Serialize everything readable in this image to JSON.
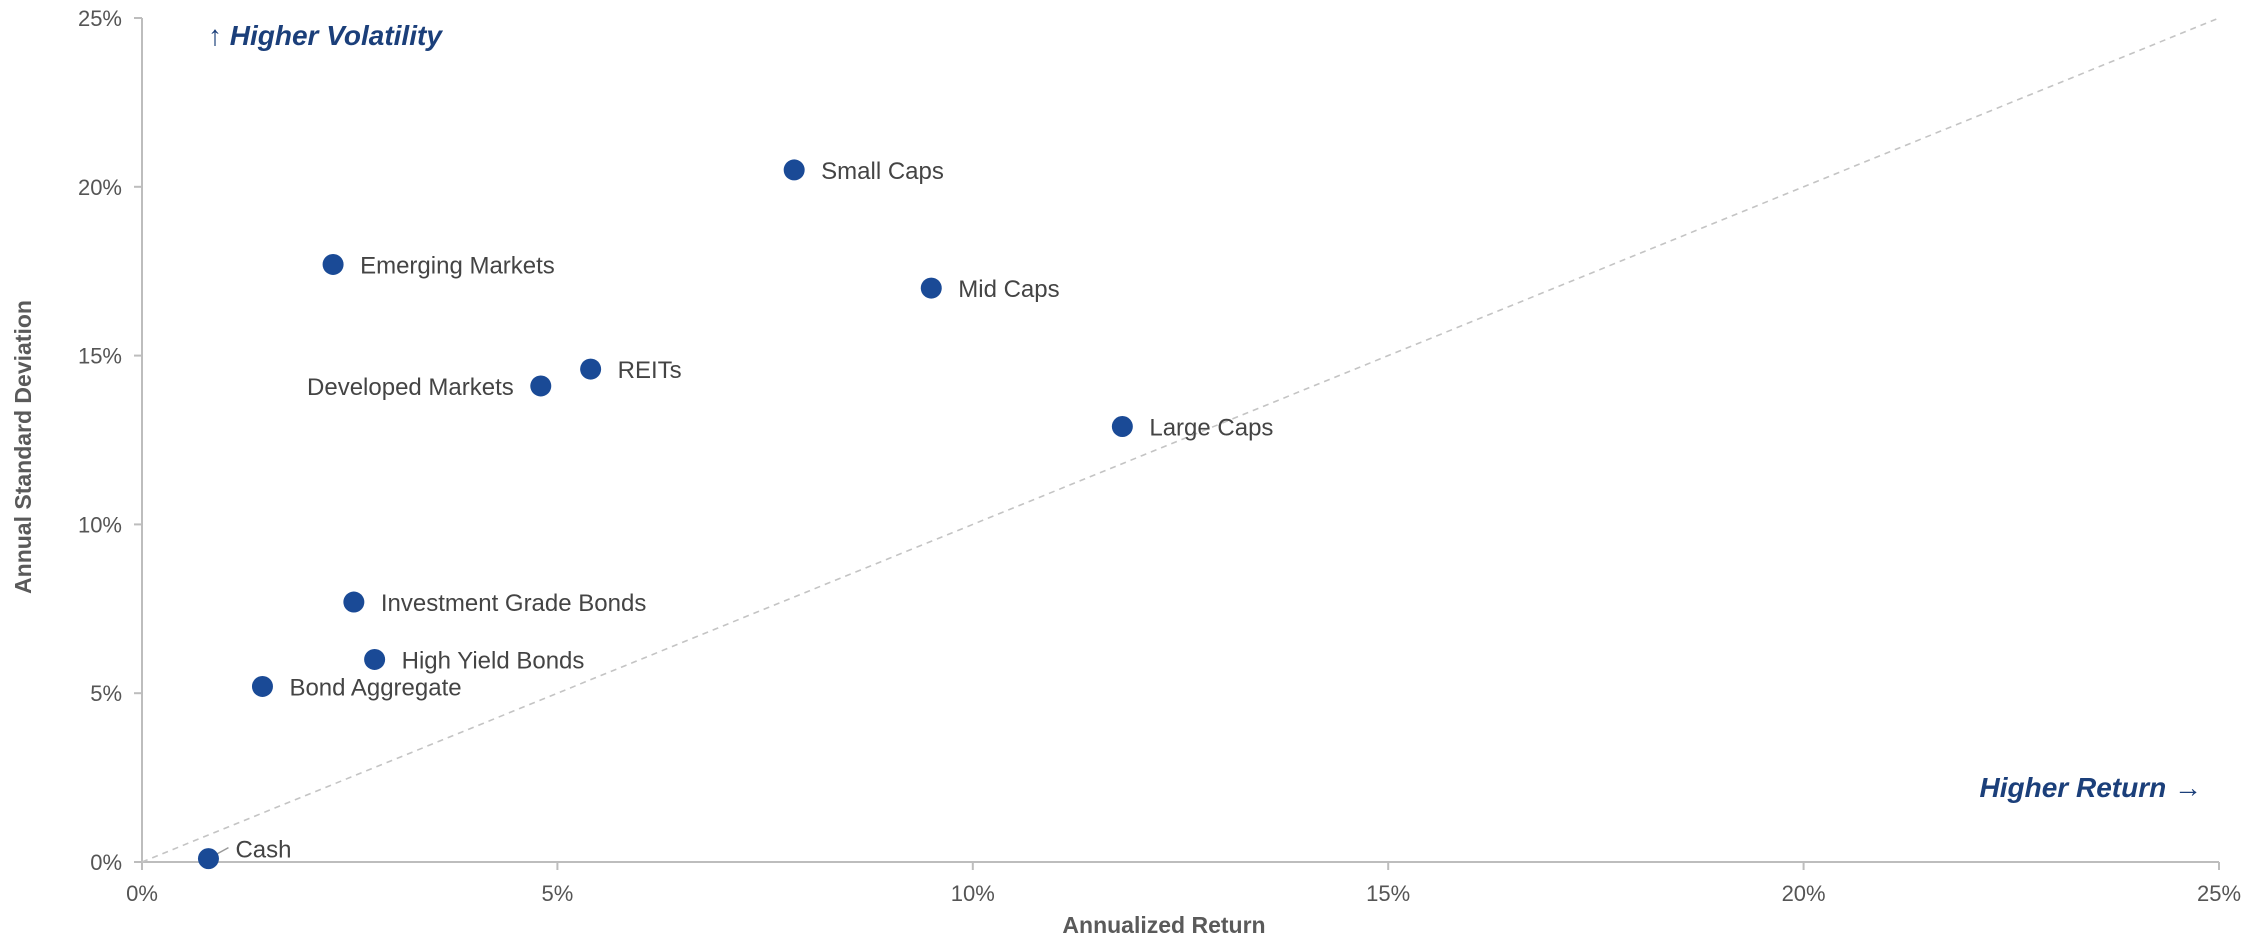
{
  "chart_data": {
    "type": "scatter",
    "xlabel": "Annualized Return",
    "ylabel": "Annual Standard Deviation",
    "xlim": [
      0,
      25
    ],
    "ylim": [
      0,
      25
    ],
    "x_ticks": [
      "0%",
      "5%",
      "10%",
      "15%",
      "20%",
      "25%"
    ],
    "y_ticks": [
      "0%",
      "5%",
      "10%",
      "15%",
      "20%",
      "25%"
    ],
    "grid": false,
    "reference_line": {
      "style": "dashed",
      "from": [
        0,
        0
      ],
      "to": [
        25,
        25
      ]
    },
    "annotations": {
      "top_left": "↑ Higher Volatility",
      "bottom_right": "Higher Return →"
    },
    "marker_color": "#1a4a96",
    "points": [
      {
        "label": "Cash",
        "x": 0.8,
        "y": 0.1
      },
      {
        "label": "Bond Aggregate",
        "x": 1.45,
        "y": 5.2
      },
      {
        "label": "High Yield Bonds",
        "x": 2.8,
        "y": 6.0
      },
      {
        "label": "Investment Grade Bonds",
        "x": 2.55,
        "y": 7.7
      },
      {
        "label": "Emerging Markets",
        "x": 2.3,
        "y": 17.7
      },
      {
        "label": "Developed Markets",
        "x": 4.8,
        "y": 14.1
      },
      {
        "label": "REITs",
        "x": 5.4,
        "y": 14.6
      },
      {
        "label": "Small Caps",
        "x": 7.85,
        "y": 20.5
      },
      {
        "label": "Mid Caps",
        "x": 9.5,
        "y": 17.0
      },
      {
        "label": "Large Caps",
        "x": 11.8,
        "y": 12.9
      }
    ]
  }
}
